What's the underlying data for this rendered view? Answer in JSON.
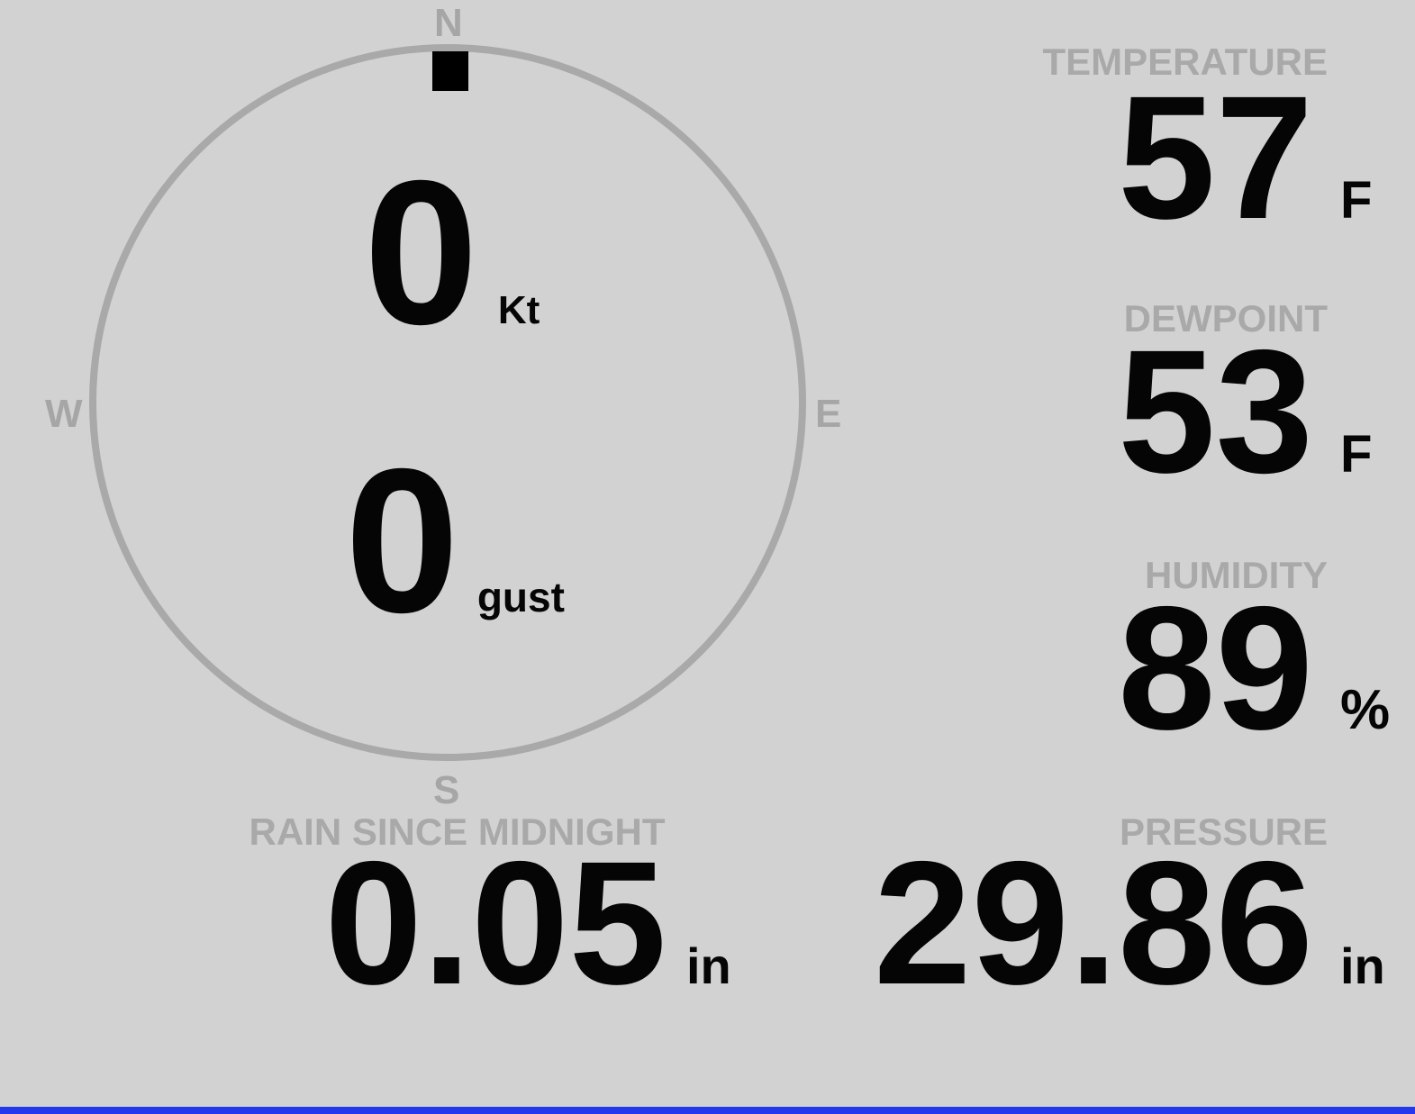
{
  "station": {
    "wind": {
      "speed": "0",
      "speed_unit": "Kt",
      "gust": "0",
      "gust_unit": "gust",
      "direction_marker": "north",
      "compass": {
        "n": "N",
        "e": "E",
        "s": "S",
        "w": "W"
      }
    },
    "metrics": {
      "temperature": {
        "label": "TEMPERATURE",
        "value": "57",
        "unit": "F"
      },
      "dewpoint": {
        "label": "DEWPOINT",
        "value": "53",
        "unit": "F"
      },
      "humidity": {
        "label": "HUMIDITY",
        "value": "89",
        "unit": "%"
      },
      "pressure": {
        "label": "PRESSURE",
        "value": "29.86",
        "unit": "in"
      },
      "rain": {
        "label": "RAIN SINCE MIDNIGHT",
        "value": "0.05",
        "unit": "in"
      }
    },
    "colors": {
      "background": "#d2d2d2",
      "dim_gray": "#a9a9a9",
      "text": "#050505",
      "accent_bar": "#2638ec"
    }
  }
}
